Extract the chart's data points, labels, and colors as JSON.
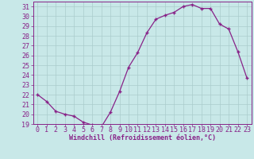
{
  "x": [
    0,
    1,
    2,
    3,
    4,
    5,
    6,
    7,
    8,
    9,
    10,
    11,
    12,
    13,
    14,
    15,
    16,
    17,
    18,
    19,
    20,
    21,
    22,
    23
  ],
  "y": [
    22.0,
    21.3,
    20.3,
    20.0,
    19.8,
    19.2,
    18.9,
    18.7,
    20.2,
    22.3,
    24.8,
    26.3,
    28.3,
    29.7,
    30.1,
    30.4,
    31.0,
    31.2,
    30.8,
    30.8,
    29.2,
    28.7,
    26.4,
    23.7
  ],
  "line_color": "#882288",
  "marker": "+",
  "marker_color": "#882288",
  "bg_color": "#c8e8e8",
  "grid_color": "#aacccc",
  "xlabel": "Windchill (Refroidissement éolien,°C)",
  "xlabel_color": "#882288",
  "tick_color": "#882288",
  "ylim": [
    19,
    31.5
  ],
  "yticks": [
    19,
    20,
    21,
    22,
    23,
    24,
    25,
    26,
    27,
    28,
    29,
    30,
    31
  ],
  "xlim": [
    -0.5,
    23.5
  ],
  "xticks": [
    0,
    1,
    2,
    3,
    4,
    5,
    6,
    7,
    8,
    9,
    10,
    11,
    12,
    13,
    14,
    15,
    16,
    17,
    18,
    19,
    20,
    21,
    22,
    23
  ],
  "spine_color": "#882288",
  "tick_fontsize": 6,
  "xlabel_fontsize": 6
}
